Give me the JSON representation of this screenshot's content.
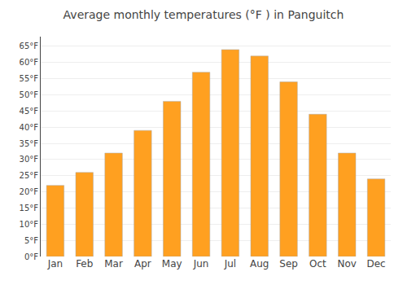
{
  "chart_data": {
    "type": "bar",
    "title": "Average monthly temperatures (°F ) in Panguitch",
    "categories": [
      "Jan",
      "Feb",
      "Mar",
      "Apr",
      "May",
      "Jun",
      "Jul",
      "Aug",
      "Sep",
      "Oct",
      "Nov",
      "Dec"
    ],
    "values": [
      22,
      26,
      32,
      39,
      48,
      57,
      64,
      62,
      54,
      44,
      32,
      24
    ],
    "color": "#FFA020",
    "ylim": [
      0,
      68
    ],
    "yticks": [
      {
        "value": 0,
        "label": "0°F"
      },
      {
        "value": 5,
        "label": "5°F"
      },
      {
        "value": 10,
        "label": "10°F"
      },
      {
        "value": 15,
        "label": "15°F"
      },
      {
        "value": 20,
        "label": "20°F"
      },
      {
        "value": 25,
        "label": "25°F"
      },
      {
        "value": 30,
        "label": "30°F"
      },
      {
        "value": 35,
        "label": "35°F"
      },
      {
        "value": 40,
        "label": "40°F"
      },
      {
        "value": 45,
        "label": "45°F"
      },
      {
        "value": 50,
        "label": "50°F"
      },
      {
        "value": 55,
        "label": "55°F"
      },
      {
        "value": 60,
        "label": "60°F"
      },
      {
        "value": 65,
        "label": "65°F"
      }
    ],
    "grid": true
  }
}
